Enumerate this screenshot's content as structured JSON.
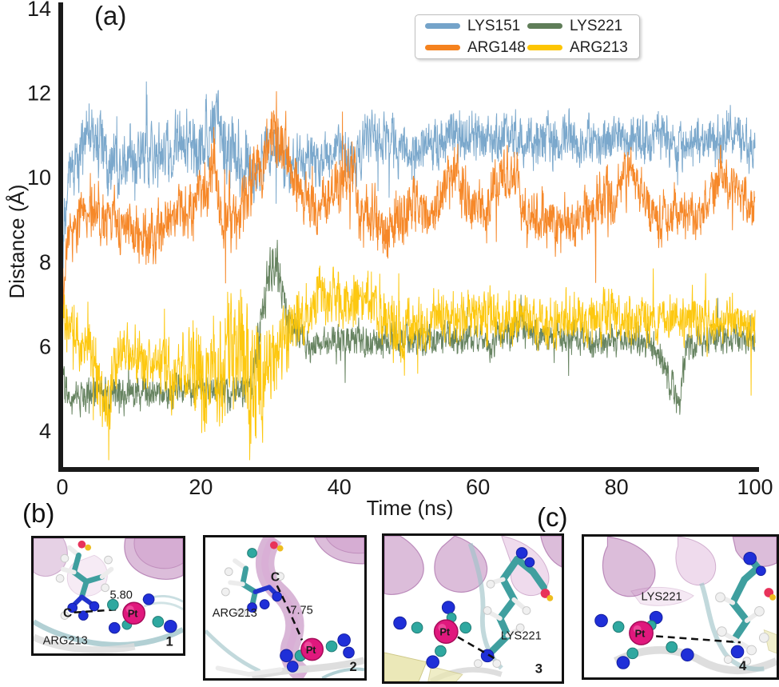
{
  "figure": {
    "panel_a_label": "(a)",
    "panel_b_label": "(b)",
    "panel_c_label": "(c)"
  },
  "chart_data": {
    "type": "line",
    "title": "",
    "xlabel": "Time (ns)",
    "ylabel": "Distance (Å)",
    "xlim": [
      0,
      100
    ],
    "ylim": [
      3.1,
      14.2
    ],
    "xticks": [
      0,
      20,
      40,
      60,
      80,
      100
    ],
    "yticks": [
      4,
      6,
      8,
      10,
      12,
      14
    ],
    "grid": false,
    "legend_position": "top-center",
    "legend_order": [
      "LYS151",
      "LYS221",
      "ARG148",
      "ARG213"
    ],
    "series": [
      {
        "name": "LYS151",
        "color": "#74a3c9",
        "mean_keypoints": [
          [
            0,
            8.0
          ],
          [
            1,
            10.0
          ],
          [
            3,
            10.8
          ],
          [
            5,
            11.0
          ],
          [
            7,
            10.4
          ],
          [
            10,
            10.6
          ],
          [
            13,
            10.4
          ],
          [
            16,
            10.8
          ],
          [
            19,
            10.5
          ],
          [
            22,
            11.2
          ],
          [
            24,
            10.6
          ],
          [
            26,
            10.3
          ],
          [
            28,
            10.1
          ],
          [
            30,
            10.7
          ],
          [
            33,
            10.4
          ],
          [
            35,
            10.2
          ],
          [
            37,
            10.4
          ],
          [
            40,
            10.8
          ],
          [
            42,
            10.2
          ],
          [
            44,
            10.9
          ],
          [
            46,
            11.0
          ],
          [
            48,
            10.8
          ],
          [
            50,
            10.5
          ],
          [
            53,
            10.8
          ],
          [
            56,
            11.0
          ],
          [
            60,
            10.9
          ],
          [
            64,
            11.0
          ],
          [
            68,
            10.8
          ],
          [
            72,
            10.9
          ],
          [
            76,
            10.8
          ],
          [
            80,
            11.0
          ],
          [
            84,
            10.9
          ],
          [
            88,
            10.8
          ],
          [
            92,
            10.9
          ],
          [
            96,
            11.0
          ],
          [
            100,
            10.7
          ]
        ],
        "noise_keypoints": [
          [
            0,
            0.55
          ],
          [
            5,
            0.7
          ],
          [
            10,
            0.55
          ],
          [
            20,
            0.65
          ],
          [
            24,
            0.75
          ],
          [
            28,
            0.55
          ],
          [
            45,
            0.5
          ],
          [
            100,
            0.45
          ]
        ]
      },
      {
        "name": "ARG148",
        "color": "#f5821e",
        "mean_keypoints": [
          [
            0,
            7.4
          ],
          [
            1,
            8.6
          ],
          [
            4,
            9.2
          ],
          [
            7,
            9.0
          ],
          [
            10,
            8.7
          ],
          [
            13,
            8.5
          ],
          [
            16,
            9.1
          ],
          [
            19,
            9.4
          ],
          [
            21,
            9.9
          ],
          [
            22,
            10.3
          ],
          [
            23,
            9.2
          ],
          [
            25,
            8.9
          ],
          [
            27,
            9.6
          ],
          [
            29,
            10.6
          ],
          [
            31,
            11.1
          ],
          [
            33,
            10.3
          ],
          [
            35,
            9.2
          ],
          [
            38,
            9.3
          ],
          [
            40,
            9.9
          ],
          [
            42,
            10.3
          ],
          [
            43,
            8.9
          ],
          [
            45,
            9.2
          ],
          [
            47,
            8.7
          ],
          [
            49,
            9.1
          ],
          [
            51,
            9.4
          ],
          [
            53,
            9.0
          ],
          [
            55,
            9.6
          ],
          [
            57,
            10.1
          ],
          [
            59,
            9.4
          ],
          [
            61,
            9.2
          ],
          [
            63,
            9.9
          ],
          [
            65,
            10.2
          ],
          [
            67,
            9.0
          ],
          [
            69,
            9.2
          ],
          [
            71,
            8.8
          ],
          [
            74,
            9.0
          ],
          [
            77,
            9.3
          ],
          [
            80,
            9.6
          ],
          [
            82,
            10.2
          ],
          [
            84,
            9.4
          ],
          [
            86,
            9.0
          ],
          [
            89,
            9.2
          ],
          [
            92,
            9.0
          ],
          [
            95,
            10.2
          ],
          [
            97,
            9.6
          ],
          [
            100,
            9.2
          ]
        ],
        "noise_keypoints": [
          [
            0,
            0.5
          ],
          [
            20,
            0.6
          ],
          [
            30,
            0.7
          ],
          [
            36,
            0.55
          ],
          [
            100,
            0.5
          ]
        ]
      },
      {
        "name": "LYS221",
        "color": "#5f7d58",
        "mean_keypoints": [
          [
            0,
            5.2
          ],
          [
            1,
            4.6
          ],
          [
            3,
            4.8
          ],
          [
            6,
            4.9
          ],
          [
            9,
            4.8
          ],
          [
            12,
            5.0
          ],
          [
            15,
            4.9
          ],
          [
            18,
            5.0
          ],
          [
            21,
            4.9
          ],
          [
            24,
            5.0
          ],
          [
            26,
            4.9
          ],
          [
            27.5,
            5.2
          ],
          [
            28.5,
            6.4
          ],
          [
            29.5,
            7.6
          ],
          [
            30.5,
            8.0
          ],
          [
            31.5,
            7.6
          ],
          [
            32.5,
            6.6
          ],
          [
            34,
            6.2
          ],
          [
            36,
            6.0
          ],
          [
            39,
            6.1
          ],
          [
            42,
            6.2
          ],
          [
            46,
            6.1
          ],
          [
            50,
            6.2
          ],
          [
            54,
            6.1
          ],
          [
            58,
            6.2
          ],
          [
            62,
            6.1
          ],
          [
            65,
            6.3
          ],
          [
            66,
            6.7
          ],
          [
            67,
            6.3
          ],
          [
            70,
            6.2
          ],
          [
            74,
            6.2
          ],
          [
            78,
            6.1
          ],
          [
            82,
            6.2
          ],
          [
            85,
            6.1
          ],
          [
            87,
            5.6
          ],
          [
            88,
            4.9
          ],
          [
            89,
            4.7
          ],
          [
            90,
            5.8
          ],
          [
            92,
            6.1
          ],
          [
            95,
            6.2
          ],
          [
            100,
            6.2
          ]
        ],
        "noise_keypoints": [
          [
            0,
            0.32
          ],
          [
            27,
            0.3
          ],
          [
            30,
            0.5
          ],
          [
            34,
            0.32
          ],
          [
            64,
            0.3
          ],
          [
            66,
            0.45
          ],
          [
            68,
            0.3
          ],
          [
            86,
            0.3
          ],
          [
            89,
            0.4
          ],
          [
            91,
            0.3
          ],
          [
            100,
            0.3
          ]
        ]
      },
      {
        "name": "ARG213",
        "color": "#fdc503",
        "mean_keypoints": [
          [
            0,
            6.6
          ],
          [
            2,
            6.2
          ],
          [
            4,
            5.9
          ],
          [
            5.5,
            5.0
          ],
          [
            6.5,
            4.6
          ],
          [
            7.5,
            5.4
          ],
          [
            9,
            5.8
          ],
          [
            11,
            5.7
          ],
          [
            13,
            5.6
          ],
          [
            15,
            5.6
          ],
          [
            16.5,
            5.2
          ],
          [
            18,
            5.5
          ],
          [
            20,
            5.3
          ],
          [
            21,
            4.8
          ],
          [
            22,
            6.2
          ],
          [
            23,
            5.0
          ],
          [
            24,
            6.6
          ],
          [
            25,
            4.9
          ],
          [
            26,
            6.4
          ],
          [
            27,
            4.7
          ],
          [
            28,
            5.2
          ],
          [
            29,
            5.0
          ],
          [
            30,
            5.4
          ],
          [
            31,
            5.8
          ],
          [
            32,
            6.1
          ],
          [
            33,
            6.4
          ],
          [
            35,
            6.8
          ],
          [
            37,
            7.1
          ],
          [
            39,
            7.2
          ],
          [
            41,
            7.0
          ],
          [
            43,
            7.2
          ],
          [
            45,
            6.9
          ],
          [
            47,
            6.7
          ],
          [
            49,
            6.3
          ],
          [
            50,
            6.6
          ],
          [
            52,
            6.5
          ],
          [
            55,
            6.7
          ],
          [
            58,
            6.6
          ],
          [
            61,
            6.7
          ],
          [
            64,
            6.6
          ],
          [
            67,
            6.7
          ],
          [
            70,
            6.6
          ],
          [
            73,
            6.7
          ],
          [
            76,
            6.6
          ],
          [
            79,
            6.7
          ],
          [
            82,
            6.6
          ],
          [
            85,
            6.7
          ],
          [
            88,
            6.6
          ],
          [
            91,
            6.7
          ],
          [
            94,
            6.6
          ],
          [
            97,
            6.7
          ],
          [
            100,
            6.5
          ]
        ],
        "noise_keypoints": [
          [
            0,
            0.45
          ],
          [
            4,
            0.6
          ],
          [
            6,
            0.8
          ],
          [
            8,
            0.5
          ],
          [
            14,
            0.5
          ],
          [
            17,
            0.6
          ],
          [
            19,
            0.8
          ],
          [
            20,
            1.1
          ],
          [
            28,
            1.2
          ],
          [
            30,
            0.9
          ],
          [
            33,
            0.6
          ],
          [
            36,
            0.55
          ],
          [
            45,
            0.5
          ],
          [
            49,
            0.7
          ],
          [
            51,
            0.5
          ],
          [
            100,
            0.48
          ]
        ]
      }
    ]
  },
  "molecule_colors": {
    "platinum_pink": "#e0187d",
    "nitrogen_blue": "#1f2fd8",
    "ligand_teal": "#2fa8a0",
    "ribbon_purple": "#a4519f"
  },
  "snapshots": [
    {
      "index": "1",
      "residue_label": "ARG213",
      "carbon_label": "C",
      "distance_label": "5.80",
      "pt_label": "Pt"
    },
    {
      "index": "2",
      "residue_label": "ARG213",
      "carbon_label": "C",
      "distance_label": "7.75",
      "pt_label": "Pt"
    },
    {
      "index": "3",
      "residue_label": "LYS221",
      "pt_label": "Pt"
    },
    {
      "index": "4",
      "residue_label": "LYS221",
      "pt_label": "Pt"
    }
  ]
}
